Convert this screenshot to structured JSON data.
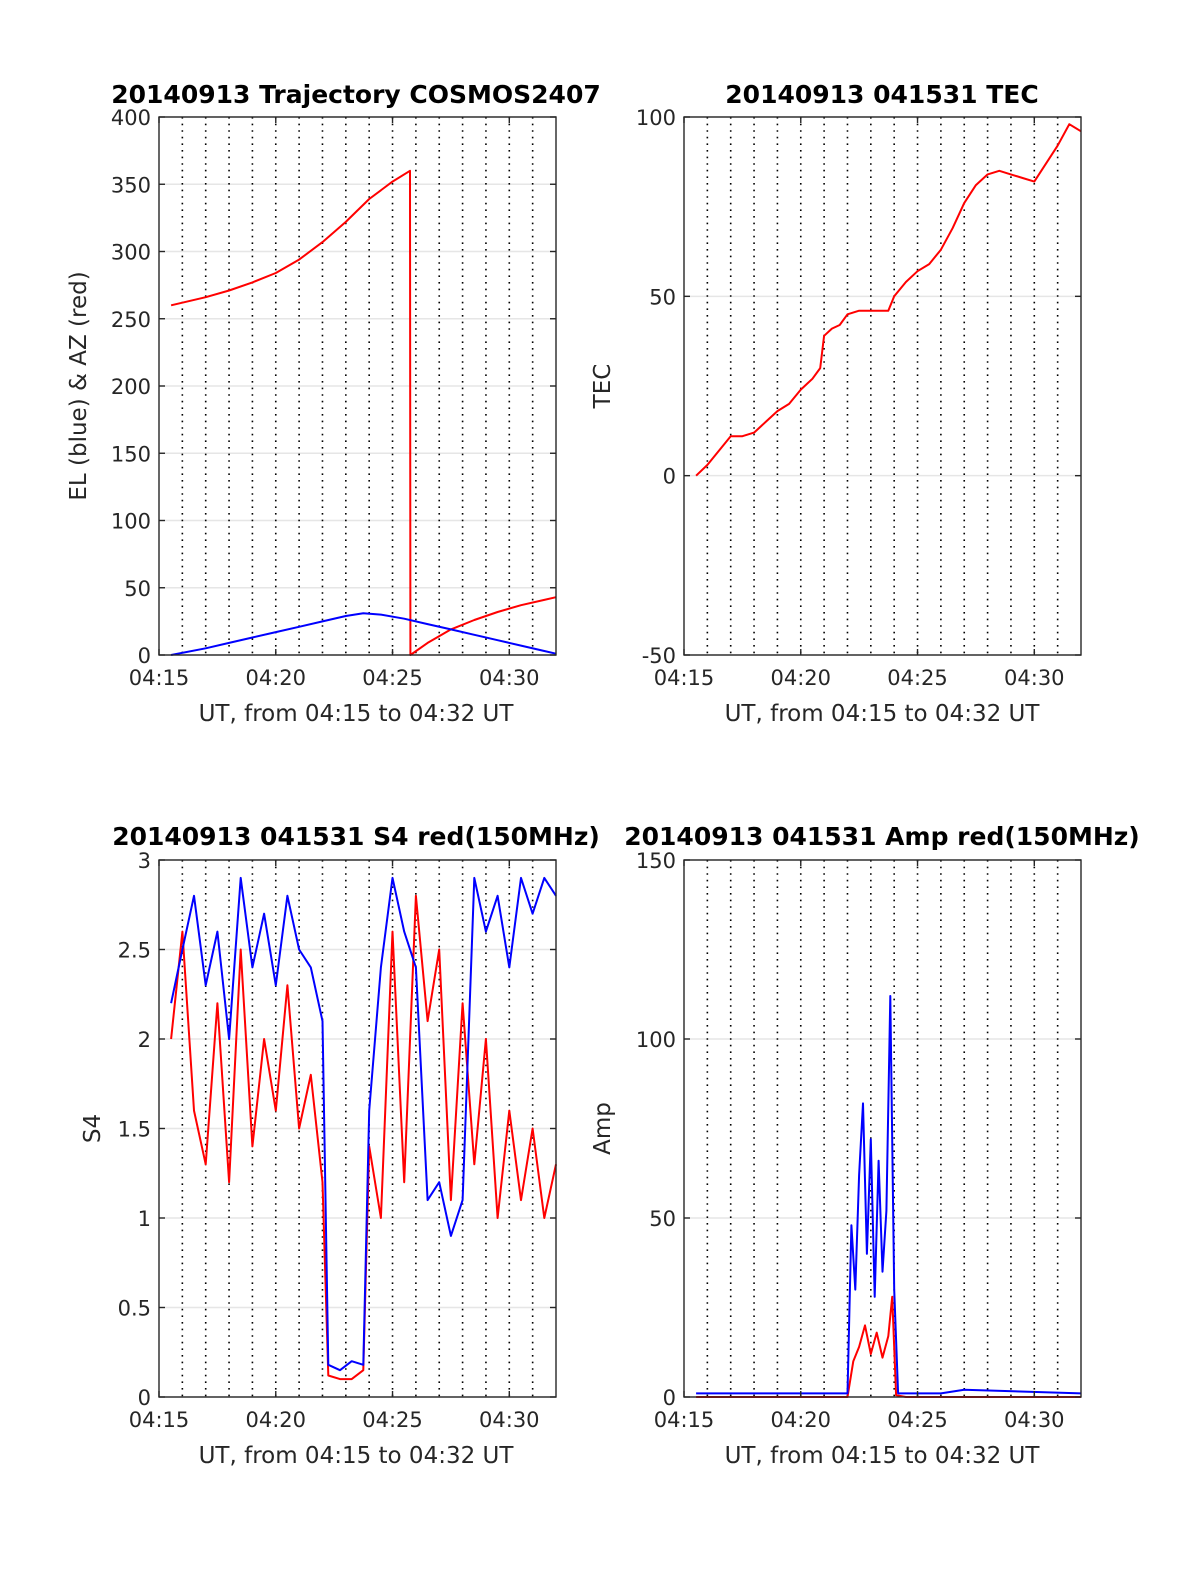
{
  "chart_data": [
    {
      "type": "line",
      "title": "20140913 Trajectory COSMOS2407",
      "xlabel": "UT, from 04:15 to 04:32 UT",
      "ylabel": "EL (blue) & AZ (red)",
      "xlim": [
        "04:15",
        "04:32"
      ],
      "ylim": [
        0,
        400
      ],
      "x_ticks": [
        "04:15",
        "04:20",
        "04:25",
        "04:30"
      ],
      "y_ticks": [
        "0",
        "50",
        "100",
        "150",
        "200",
        "250",
        "300",
        "350",
        "400"
      ],
      "grid": true,
      "series": [
        {
          "color": "#ff0000",
          "x": [
            "04:15:31",
            "04:17:00",
            "04:18:00",
            "04:19:00",
            "04:20:00",
            "04:21:00",
            "04:22:00",
            "04:23:00",
            "04:24:00",
            "04:25:00",
            "04:25:45",
            "04:25:46",
            "04:26:30",
            "04:27:30",
            "04:28:30",
            "04:29:30",
            "04:30:30",
            "04:31:30",
            "04:32:00"
          ],
          "values": [
            260,
            266,
            271,
            277,
            284,
            294,
            307,
            322,
            339,
            352,
            360,
            0,
            9,
            19,
            26,
            32,
            37,
            41,
            43
          ]
        },
        {
          "color": "#0000ff",
          "x": [
            "04:15:31",
            "04:17:00",
            "04:18:00",
            "04:19:00",
            "04:20:00",
            "04:21:00",
            "04:22:00",
            "04:23:00",
            "04:23:45",
            "04:24:30",
            "04:25:30",
            "04:26:30",
            "04:27:30",
            "04:28:30",
            "04:29:30",
            "04:30:30",
            "04:31:30",
            "04:32:00"
          ],
          "values": [
            0,
            5,
            9,
            13,
            17,
            21,
            25,
            29,
            31,
            30,
            27,
            23,
            19,
            15,
            11,
            7,
            3,
            1
          ]
        }
      ]
    },
    {
      "type": "line",
      "title": "20140913 041531 TEC",
      "xlabel": "UT, from 04:15 to 04:32 UT",
      "ylabel": "TEC",
      "xlim": [
        "04:15",
        "04:32"
      ],
      "ylim": [
        -50,
        100
      ],
      "x_ticks": [
        "04:15",
        "04:20",
        "04:25",
        "04:30"
      ],
      "y_ticks": [
        "-50",
        "0",
        "50",
        "100"
      ],
      "grid": true,
      "series": [
        {
          "color": "#ff0000",
          "x": [
            "04:15:31",
            "04:16:00",
            "04:16:30",
            "04:17:00",
            "04:17:30",
            "04:18:00",
            "04:18:30",
            "04:19:00",
            "04:19:30",
            "04:20:00",
            "04:20:30",
            "04:20:50",
            "04:21:00",
            "04:21:20",
            "04:21:40",
            "04:22:00",
            "04:22:30",
            "04:23:00",
            "04:23:30",
            "04:23:45",
            "04:24:00",
            "04:24:30",
            "04:25:00",
            "04:25:30",
            "04:26:00",
            "04:26:30",
            "04:27:00",
            "04:27:30",
            "04:28:00",
            "04:28:30",
            "04:29:00",
            "04:29:30",
            "04:30:00",
            "04:30:30",
            "04:31:00",
            "04:31:30",
            "04:32:00"
          ],
          "values": [
            0,
            3,
            7,
            11,
            11,
            12,
            15,
            18,
            20,
            24,
            27,
            30,
            39,
            41,
            42,
            45,
            46,
            46,
            46,
            46,
            50,
            54,
            57,
            59,
            63,
            69,
            76,
            81,
            84,
            85,
            84,
            83,
            82,
            87,
            92,
            98,
            96
          ]
        }
      ]
    },
    {
      "type": "line",
      "title": "20140913 041531 S4 red(150MHz)",
      "xlabel": "UT, from 04:15 to 04:32 UT",
      "ylabel": "S4",
      "xlim": [
        "04:15",
        "04:32"
      ],
      "ylim": [
        0,
        3
      ],
      "x_ticks": [
        "04:15",
        "04:20",
        "04:25",
        "04:30"
      ],
      "y_ticks": [
        "0",
        "0.5",
        "1",
        "1.5",
        "2",
        "2.5",
        "3"
      ],
      "grid": true,
      "series": [
        {
          "color": "#ff0000",
          "x": [
            "04:15:31",
            "04:16:00",
            "04:16:30",
            "04:17:00",
            "04:17:30",
            "04:18:00",
            "04:18:30",
            "04:19:00",
            "04:19:30",
            "04:20:00",
            "04:20:30",
            "04:21:00",
            "04:21:30",
            "04:22:00",
            "04:22:15",
            "04:22:45",
            "04:23:15",
            "04:23:45",
            "04:24:00",
            "04:24:30",
            "04:25:00",
            "04:25:30",
            "04:26:00",
            "04:26:30",
            "04:27:00",
            "04:27:30",
            "04:28:00",
            "04:28:30",
            "04:29:00",
            "04:29:30",
            "04:30:00",
            "04:30:30",
            "04:31:00",
            "04:31:30",
            "04:32:00"
          ],
          "values": [
            2.0,
            2.6,
            1.6,
            1.3,
            2.2,
            1.2,
            2.5,
            1.4,
            2.0,
            1.6,
            2.3,
            1.5,
            1.8,
            1.2,
            0.12,
            0.1,
            0.1,
            0.15,
            1.4,
            1.0,
            2.6,
            1.2,
            2.8,
            2.1,
            2.5,
            1.1,
            2.2,
            1.3,
            2.0,
            1.0,
            1.6,
            1.1,
            1.5,
            1.0,
            1.3
          ]
        },
        {
          "color": "#0000ff",
          "x": [
            "04:15:31",
            "04:16:00",
            "04:16:30",
            "04:17:00",
            "04:17:30",
            "04:18:00",
            "04:18:30",
            "04:19:00",
            "04:19:30",
            "04:20:00",
            "04:20:30",
            "04:21:00",
            "04:21:30",
            "04:22:00",
            "04:22:15",
            "04:22:45",
            "04:23:15",
            "04:23:45",
            "04:24:00",
            "04:24:30",
            "04:25:00",
            "04:25:30",
            "04:26:00",
            "04:26:30",
            "04:27:00",
            "04:27:30",
            "04:28:00",
            "04:28:30",
            "04:29:00",
            "04:29:30",
            "04:30:00",
            "04:30:30",
            "04:31:00",
            "04:31:30",
            "04:32:00"
          ],
          "values": [
            2.2,
            2.5,
            2.8,
            2.3,
            2.6,
            2.0,
            2.9,
            2.4,
            2.7,
            2.3,
            2.8,
            2.5,
            2.4,
            2.1,
            0.18,
            0.15,
            0.2,
            0.18,
            1.6,
            2.4,
            2.9,
            2.6,
            2.4,
            1.1,
            1.2,
            0.9,
            1.1,
            2.9,
            2.6,
            2.8,
            2.4,
            2.9,
            2.7,
            2.9,
            2.8
          ]
        }
      ]
    },
    {
      "type": "line",
      "title": "20140913 041531 Amp red(150MHz)",
      "xlabel": "UT, from 04:15 to 04:32 UT",
      "ylabel": "Amp",
      "xlim": [
        "04:15",
        "04:32"
      ],
      "ylim": [
        0,
        150
      ],
      "x_ticks": [
        "04:15",
        "04:20",
        "04:25",
        "04:30"
      ],
      "y_ticks": [
        "0",
        "50",
        "100",
        "150"
      ],
      "grid": true,
      "series": [
        {
          "color": "#ff0000",
          "x": [
            "04:15:31",
            "04:22:00",
            "04:22:15",
            "04:22:30",
            "04:22:45",
            "04:23:00",
            "04:23:15",
            "04:23:30",
            "04:23:45",
            "04:23:55",
            "04:24:05",
            "04:24:30",
            "04:32:00"
          ],
          "values": [
            0,
            0,
            10,
            14,
            20,
            12,
            18,
            11,
            17,
            28,
            0.5,
            0,
            0
          ]
        },
        {
          "color": "#0000ff",
          "x": [
            "04:15:31",
            "04:20:00",
            "04:22:00",
            "04:22:10",
            "04:22:20",
            "04:22:30",
            "04:22:40",
            "04:22:50",
            "04:23:00",
            "04:23:10",
            "04:23:20",
            "04:23:30",
            "04:23:40",
            "04:23:50",
            "04:24:00",
            "04:24:10",
            "04:26:00",
            "04:27:00",
            "04:32:00"
          ],
          "values": [
            1,
            1,
            1,
            48,
            30,
            62,
            82,
            40,
            72,
            28,
            66,
            35,
            52,
            112,
            30,
            1,
            1,
            2,
            1
          ]
        }
      ]
    }
  ]
}
